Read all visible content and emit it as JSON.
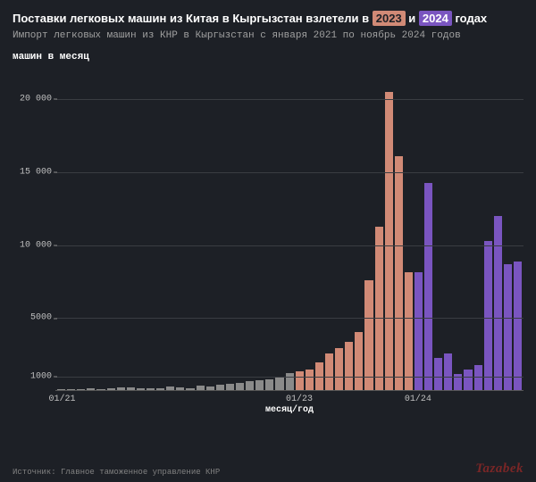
{
  "title": {
    "prefix": "Поставки легковых машин из Китая в Кыргызстан взлетели в ",
    "hl1": "2023",
    "mid": " и ",
    "hl2": "2024",
    "suffix": " годах",
    "fontsize": 13,
    "color": "#ffffff"
  },
  "subtitle": "Импорт легковых машин из КНР в Кыргызстан с января 2021 по ноябрь 2024 годов",
  "ylabel": "машин в месяц",
  "xlabel": "месяц/год",
  "source": "Источник: Главное таможенное управление КНР",
  "brand": "Tazabek",
  "chart": {
    "type": "bar",
    "background_color": "#1d2026",
    "grid_color": "#3a3d42",
    "axis_color": "#555555",
    "text_color": "#c0c0c0",
    "ylim": [
      0,
      22000
    ],
    "yticks": [
      {
        "v": 1000,
        "label": "1000"
      },
      {
        "v": 5000,
        "label": "5000"
      },
      {
        "v": 10000,
        "label": "10 000"
      },
      {
        "v": 15000,
        "label": "15 000"
      },
      {
        "v": 20000,
        "label": "20 000"
      }
    ],
    "xticks": [
      {
        "i": 0,
        "label": "01/21"
      },
      {
        "i": 24,
        "label": "01/23"
      },
      {
        "i": 36,
        "label": "01/24"
      }
    ],
    "colors": {
      "2021": "#8a8a8a",
      "2022": "#8a8a8a",
      "2023": "#d18a76",
      "2024": "#7a55c0"
    },
    "highlight_bg": {
      "2023": "#d18a76",
      "2024": "#7a55c0"
    },
    "bar_width_ratio": 0.85,
    "series": [
      {
        "m": "2021-01",
        "v": 50
      },
      {
        "m": "2021-02",
        "v": 40
      },
      {
        "m": "2021-03",
        "v": 90
      },
      {
        "m": "2021-04",
        "v": 110
      },
      {
        "m": "2021-05",
        "v": 95
      },
      {
        "m": "2021-06",
        "v": 160
      },
      {
        "m": "2021-07",
        "v": 170
      },
      {
        "m": "2021-08",
        "v": 180
      },
      {
        "m": "2021-09",
        "v": 130
      },
      {
        "m": "2021-10",
        "v": 110
      },
      {
        "m": "2021-11",
        "v": 160
      },
      {
        "m": "2021-12",
        "v": 260
      },
      {
        "m": "2022-01",
        "v": 180
      },
      {
        "m": "2022-02",
        "v": 140
      },
      {
        "m": "2022-03",
        "v": 300
      },
      {
        "m": "2022-04",
        "v": 250
      },
      {
        "m": "2022-05",
        "v": 350
      },
      {
        "m": "2022-06",
        "v": 420
      },
      {
        "m": "2022-07",
        "v": 500
      },
      {
        "m": "2022-08",
        "v": 650
      },
      {
        "m": "2022-09",
        "v": 700
      },
      {
        "m": "2022-10",
        "v": 750
      },
      {
        "m": "2022-11",
        "v": 900
      },
      {
        "m": "2022-12",
        "v": 1200
      },
      {
        "m": "2023-01",
        "v": 1300
      },
      {
        "m": "2023-02",
        "v": 1400
      },
      {
        "m": "2023-03",
        "v": 1900
      },
      {
        "m": "2023-04",
        "v": 2500
      },
      {
        "m": "2023-05",
        "v": 2900
      },
      {
        "m": "2023-06",
        "v": 3300
      },
      {
        "m": "2023-07",
        "v": 4000
      },
      {
        "m": "2023-08",
        "v": 7500
      },
      {
        "m": "2023-09",
        "v": 11200
      },
      {
        "m": "2023-10",
        "v": 20400
      },
      {
        "m": "2023-11",
        "v": 16000
      },
      {
        "m": "2023-12",
        "v": 8100
      },
      {
        "m": "2024-01",
        "v": 8100
      },
      {
        "m": "2024-02",
        "v": 14200
      },
      {
        "m": "2024-03",
        "v": 2200
      },
      {
        "m": "2024-04",
        "v": 2500
      },
      {
        "m": "2024-05",
        "v": 1100
      },
      {
        "m": "2024-06",
        "v": 1400
      },
      {
        "m": "2024-07",
        "v": 1700
      },
      {
        "m": "2024-08",
        "v": 10200
      },
      {
        "m": "2024-09",
        "v": 11900
      },
      {
        "m": "2024-10",
        "v": 8600
      },
      {
        "m": "2024-11",
        "v": 8800
      }
    ]
  }
}
